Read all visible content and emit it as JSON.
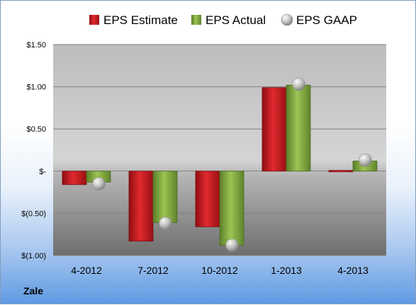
{
  "company": "Zale",
  "chart_data": {
    "type": "bar",
    "categories": [
      "4-2012",
      "7-2012",
      "10-2012",
      "1-2013",
      "4-2013"
    ],
    "series": [
      {
        "name": "EPS Estimate",
        "type": "bar",
        "color": "#c0171c",
        "values": [
          -0.16,
          -0.83,
          -0.66,
          0.99,
          -0.01
        ]
      },
      {
        "name": "EPS Actual",
        "type": "bar",
        "color": "#79a23a",
        "values": [
          -0.13,
          -0.61,
          -0.88,
          1.02,
          0.12
        ]
      },
      {
        "name": "EPS GAAP",
        "type": "scatter",
        "color": "#a6a6a6",
        "values": [
          -0.15,
          -0.62,
          -0.88,
          1.03,
          0.13
        ]
      }
    ],
    "y_ticks": [
      {
        "value": 1.5,
        "label": "$1.50"
      },
      {
        "value": 1.0,
        "label": "$1.00"
      },
      {
        "value": 0.5,
        "label": "$0.50"
      },
      {
        "value": 0,
        "label": "$-"
      },
      {
        "value": -0.5,
        "label": "$(0.50)"
      },
      {
        "value": -1.0,
        "label": "$(1.00)"
      }
    ],
    "ylim": [
      -1.0,
      1.5
    ],
    "grid": true,
    "legend_position": "top"
  }
}
